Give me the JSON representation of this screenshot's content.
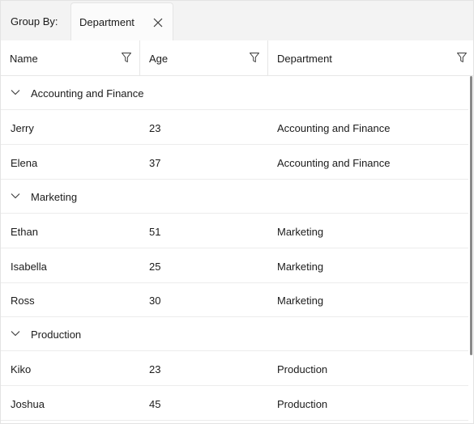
{
  "group_bar": {
    "label": "Group By:",
    "chips": [
      {
        "label": "Department",
        "close_icon": "close-icon"
      }
    ]
  },
  "columns": [
    {
      "label": "Name",
      "filter_icon": "filter-icon"
    },
    {
      "label": "Age",
      "filter_icon": "filter-icon"
    },
    {
      "label": "Department",
      "filter_icon": "filter-icon"
    }
  ],
  "groups": [
    {
      "label": "Accounting and Finance",
      "expanded": true,
      "rows": [
        {
          "name": "Jerry",
          "age": "23",
          "department": "Accounting and Finance"
        },
        {
          "name": "Elena",
          "age": "37",
          "department": "Accounting and Finance"
        }
      ]
    },
    {
      "label": "Marketing",
      "expanded": true,
      "rows": [
        {
          "name": "Ethan",
          "age": "51",
          "department": "Marketing"
        },
        {
          "name": "Isabella",
          "age": "25",
          "department": "Marketing"
        },
        {
          "name": "Ross",
          "age": "30",
          "department": "Marketing"
        }
      ]
    },
    {
      "label": "Production",
      "expanded": true,
      "rows": [
        {
          "name": "Kiko",
          "age": "23",
          "department": "Production"
        },
        {
          "name": "Joshua",
          "age": "45",
          "department": "Production"
        }
      ]
    }
  ],
  "colors": {
    "groupbar_bg": "#f3f3f3",
    "border": "#e6e6e6",
    "text": "#1b1b1b",
    "scrollbar": "#8a8a8a"
  }
}
